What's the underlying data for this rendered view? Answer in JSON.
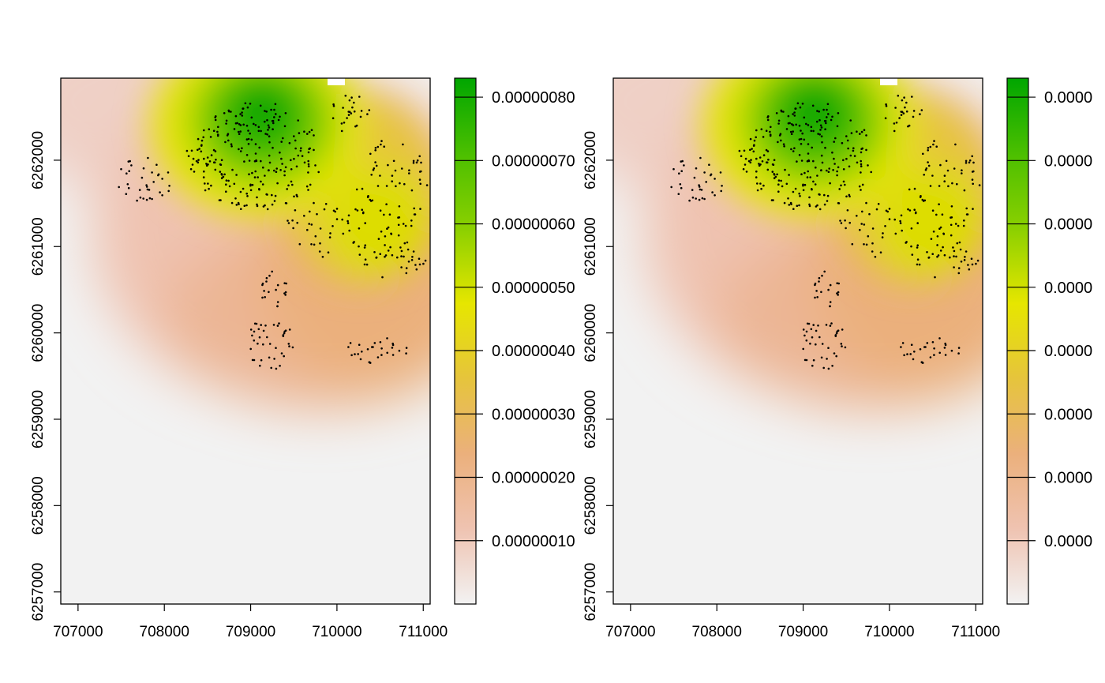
{
  "chart_data": [
    {
      "type": "heatmap",
      "title": "",
      "xlabel": "",
      "ylabel": "",
      "xlim": [
        706800,
        711080
      ],
      "ylim": [
        6256860,
        6262950
      ],
      "x_ticks": [
        707000,
        708000,
        709000,
        710000,
        711000
      ],
      "x_tick_labels": [
        "707000",
        "708000",
        "709000",
        "710000",
        "711000"
      ],
      "y_ticks": [
        6257000,
        6258000,
        6259000,
        6260000,
        6261000,
        6262000
      ],
      "y_tick_labels": [
        "6257000",
        "6258000",
        "6259000",
        "6260000",
        "6261000",
        "6262000"
      ],
      "colorbar": {
        "range": [
          0,
          8.3e-07
        ],
        "ticks": [
          1e-07,
          2e-07,
          3e-07,
          4e-07,
          5e-07,
          6e-07,
          7e-07,
          8e-07
        ],
        "tick_labels": [
          "0.00000010",
          "0.00000020",
          "0.00000030",
          "0.00000040",
          "0.00000050",
          "0.00000060",
          "0.00000070",
          "0.00000080"
        ],
        "colors": [
          "#f2f2f2",
          "#efc3b1",
          "#ebb07c",
          "#e6c43c",
          "#e6e600",
          "#8bd000",
          "#4bbf00",
          "#00a600"
        ]
      },
      "points_shown": true
    },
    {
      "type": "heatmap",
      "title": "",
      "xlabel": "",
      "ylabel": "",
      "xlim": [
        706800,
        711080
      ],
      "ylim": [
        6256860,
        6262950
      ],
      "x_ticks": [
        707000,
        708000,
        709000,
        710000,
        711000
      ],
      "x_tick_labels": [
        "707000",
        "708000",
        "709000",
        "710000",
        "711000"
      ],
      "y_ticks": [
        6257000,
        6258000,
        6259000,
        6260000,
        6261000,
        6262000
      ],
      "y_tick_labels": [
        "6257000",
        "6258000",
        "6259000",
        "6260000",
        "6261000",
        "6262000"
      ],
      "colorbar": {
        "range": [
          0,
          8.3e-07
        ],
        "ticks": [
          1e-07,
          2e-07,
          3e-07,
          4e-07,
          5e-07,
          6e-07,
          7e-07,
          8e-07
        ],
        "tick_labels": [
          "0.0000",
          "0.0000",
          "0.0000",
          "0.0000",
          "0.0000",
          "0.0000",
          "0.0000",
          "0.0000"
        ],
        "colors": [
          "#f2f2f2",
          "#efc3b1",
          "#ebb07c",
          "#e6c43c",
          "#e6e600",
          "#8bd000",
          "#4bbf00",
          "#00a600"
        ]
      },
      "points_shown": true
    }
  ]
}
